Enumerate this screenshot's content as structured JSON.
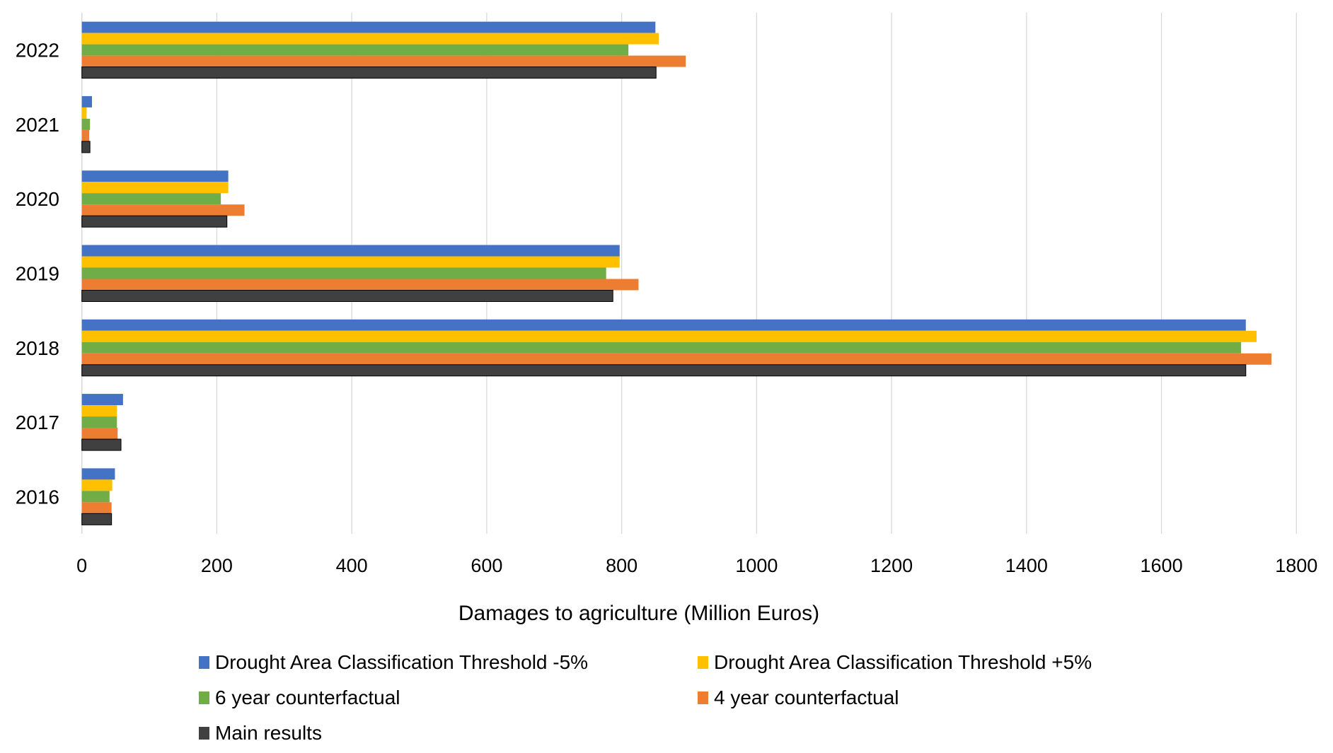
{
  "chart_data": {
    "type": "bar",
    "orientation": "horizontal",
    "title": "",
    "xlabel": "Damages to agriculture (Million Euros)",
    "ylabel": "",
    "xlim": [
      0,
      1800
    ],
    "xticks": [
      0,
      200,
      400,
      600,
      800,
      1000,
      1200,
      1400,
      1600,
      1800
    ],
    "xtick_labels": [
      "0",
      "200",
      "400",
      "600",
      "800",
      "1000",
      "1200",
      "1400",
      "1600",
      "1800"
    ],
    "grid": "vertical",
    "legend_position": "bottom",
    "categories": [
      "2022",
      "2021",
      "2020",
      "2019",
      "2018",
      "2017",
      "2016"
    ],
    "series": [
      {
        "name": "Drought Area Classification Threshold -5%",
        "color": "#4472C4",
        "values": [
          850,
          15,
          217,
          797,
          1725,
          61,
          49
        ]
      },
      {
        "name": "Drought Area Classification Threshold +5%",
        "color": "#FFC000",
        "values": [
          855,
          7,
          217,
          797,
          1741,
          52,
          45
        ]
      },
      {
        "name": "6 year counterfactual",
        "color": "#70AD47",
        "values": [
          810,
          12,
          206,
          777,
          1718,
          52,
          41
        ]
      },
      {
        "name": "4 year counterfactual",
        "color": "#ED7D31",
        "values": [
          895,
          11,
          241,
          825,
          1763,
          53,
          44
        ]
      },
      {
        "name": "Main results",
        "color": "#404040",
        "values": [
          851,
          12,
          215,
          787,
          1725,
          58,
          44
        ]
      }
    ]
  }
}
